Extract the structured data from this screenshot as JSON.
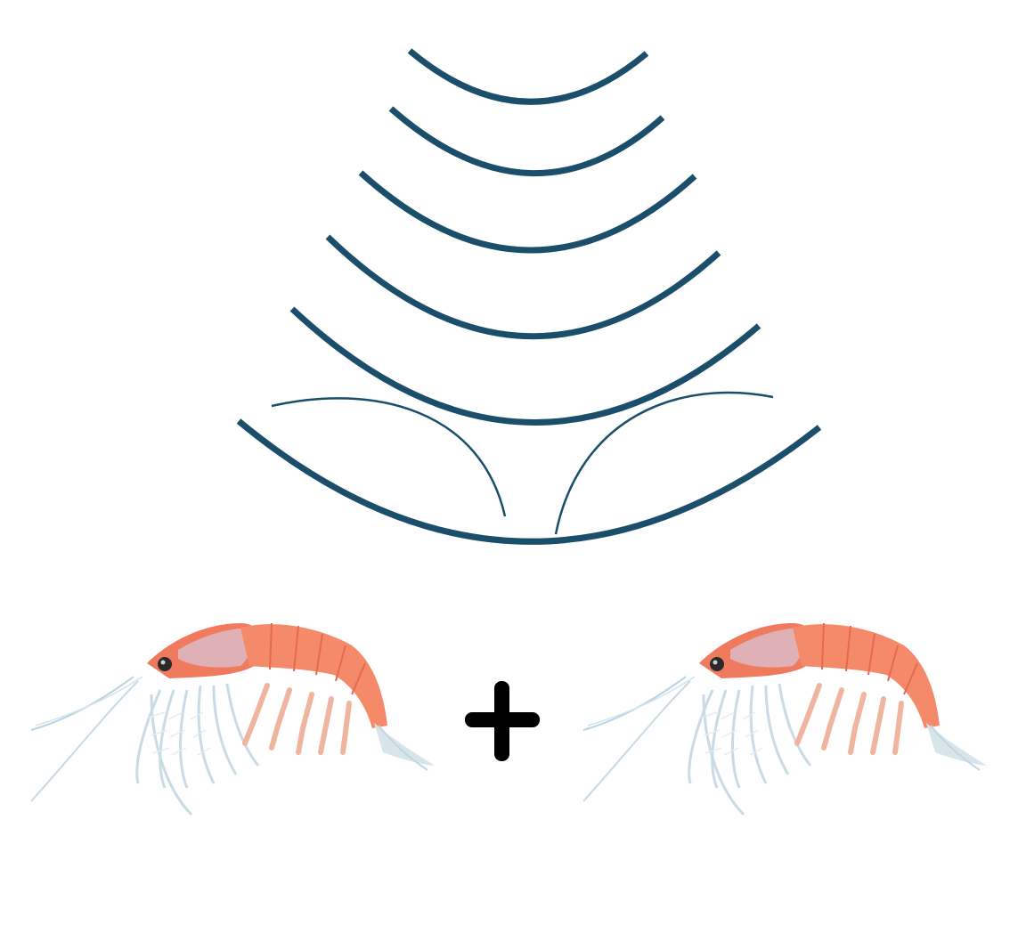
{
  "figure": {
    "echo_arcs": 6,
    "arc_color": "#1b4e6b",
    "plus_color": "#000000",
    "symbol": "+",
    "organisms": [
      {
        "name": "krill-left",
        "depicts": "krill"
      },
      {
        "name": "krill-right",
        "depicts": "krill"
      }
    ]
  }
}
